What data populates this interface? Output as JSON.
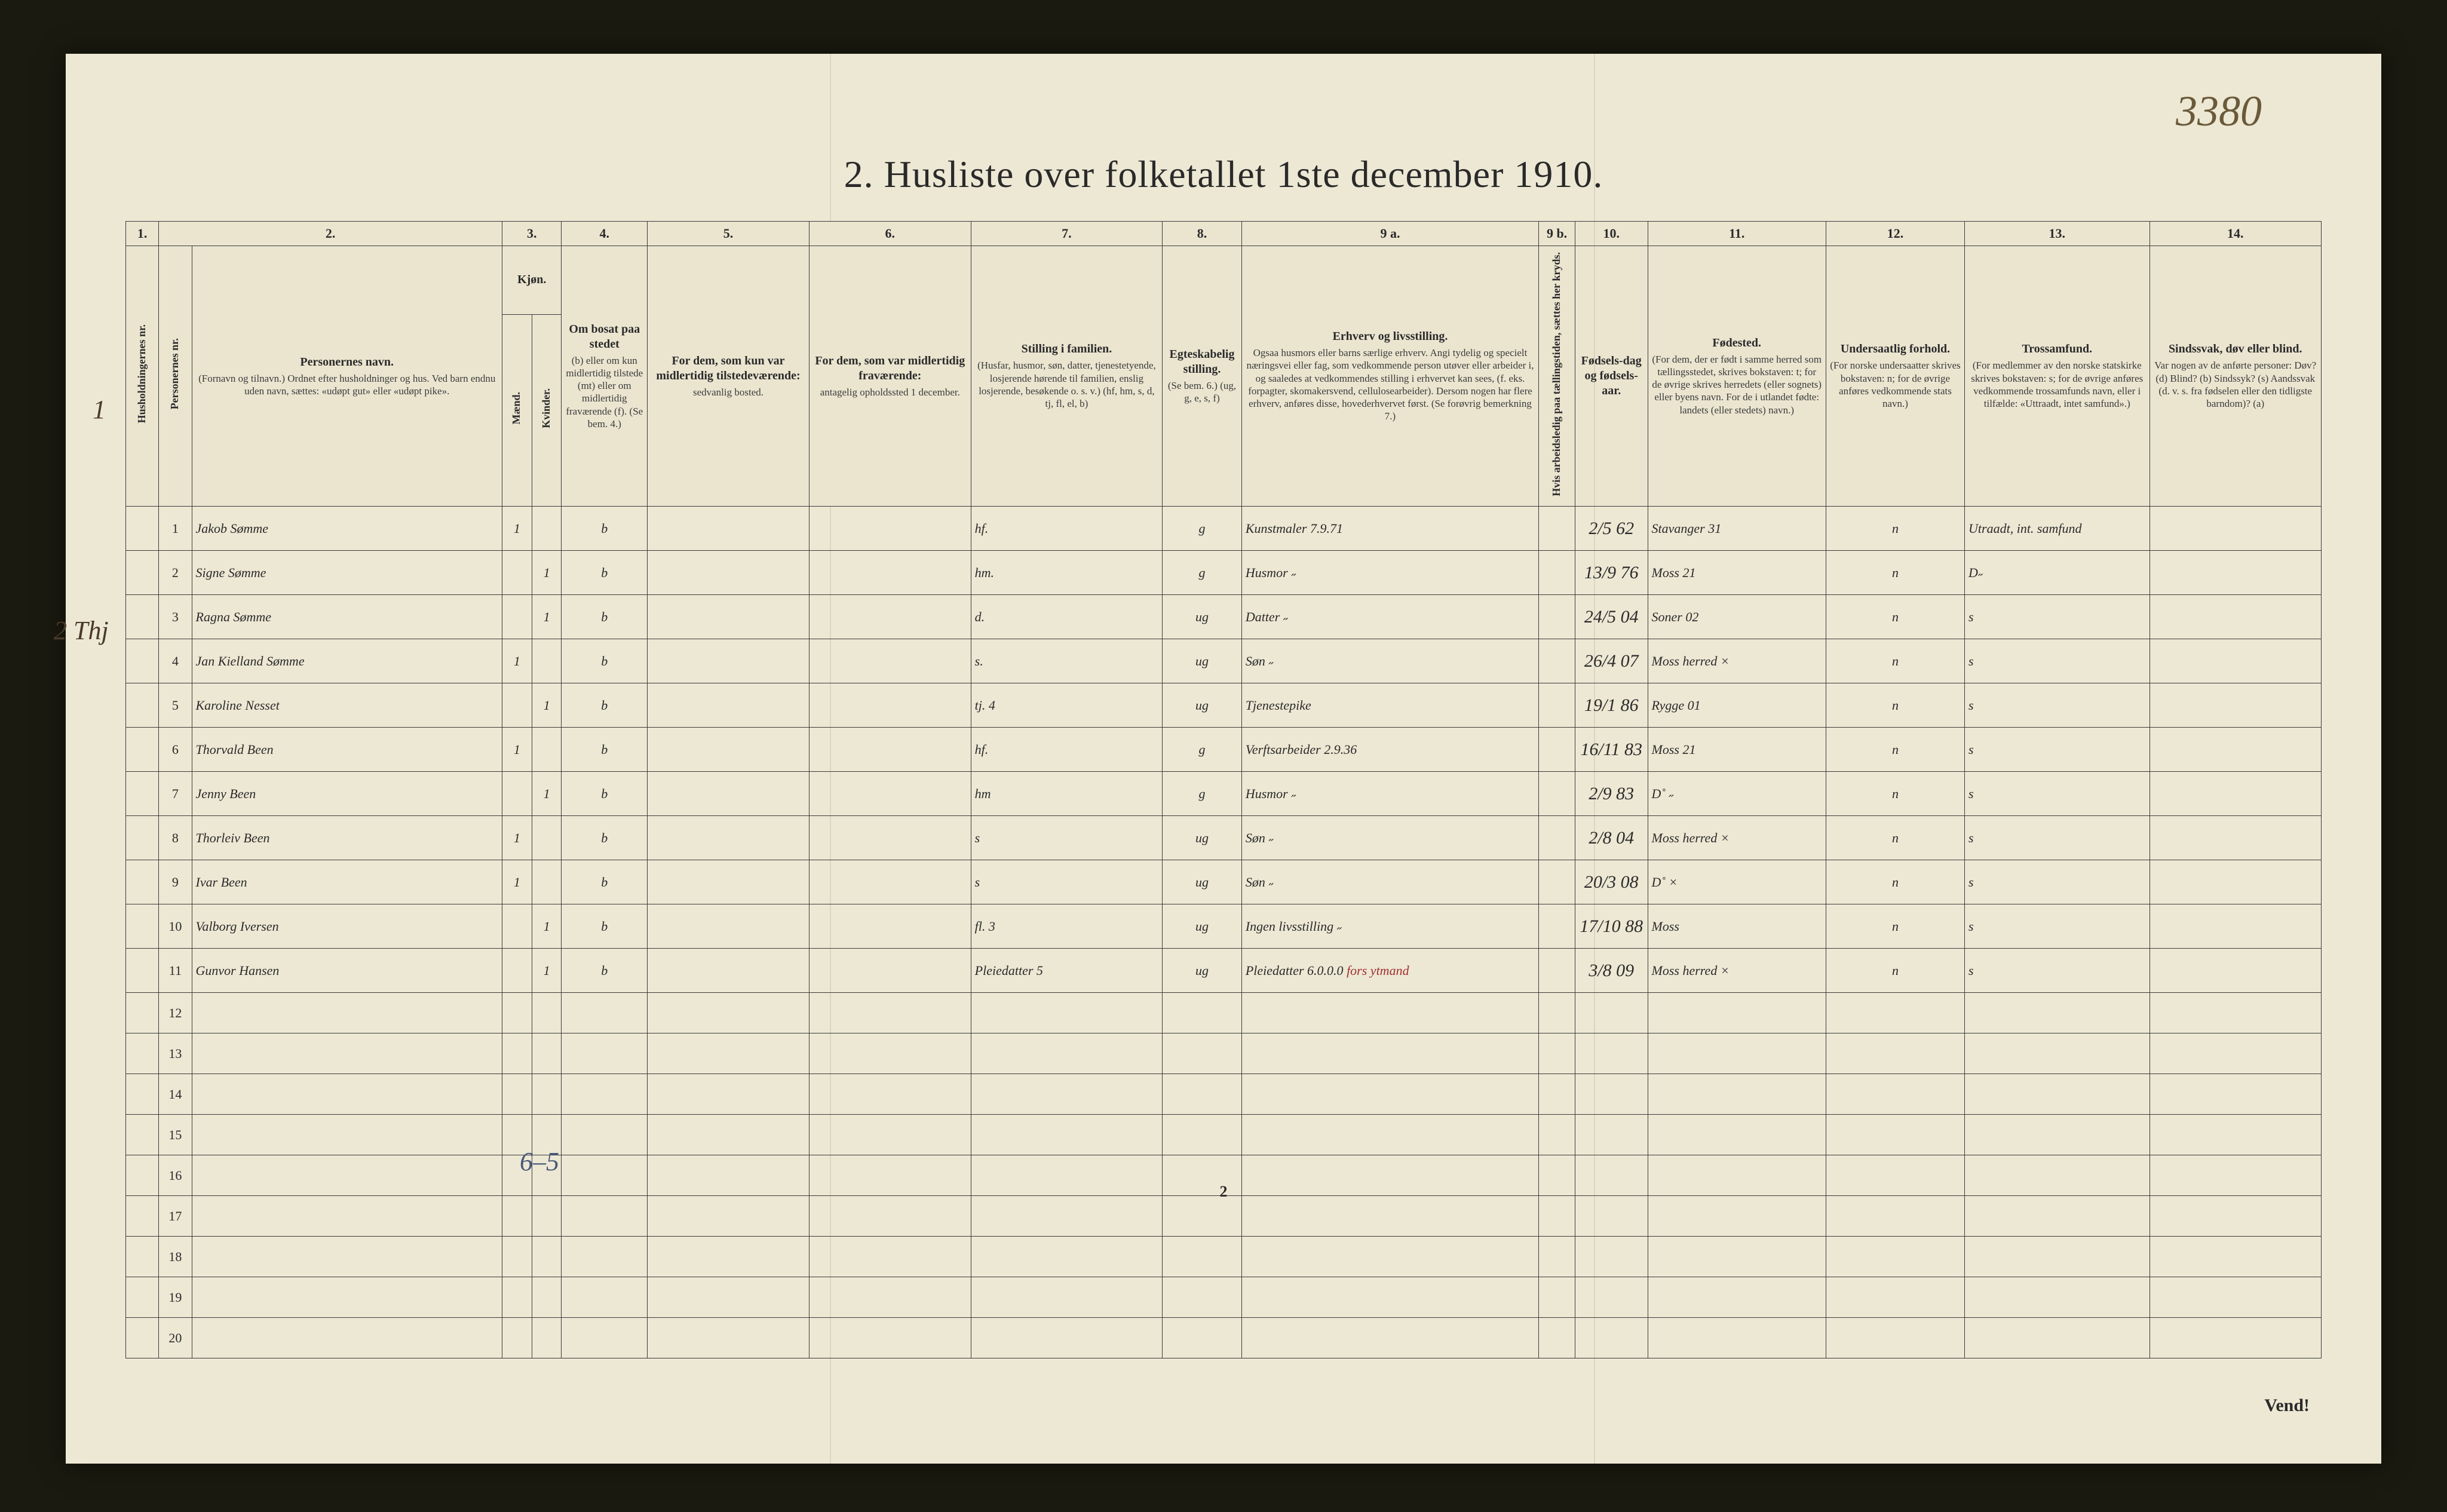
{
  "ref_number": "3380",
  "title": "2.  Husliste over folketallet 1ste december 1910.",
  "margin_notes": {
    "left1": "1",
    "left2": "2  Thj"
  },
  "bottom_note": "6–5",
  "page_number": "2",
  "vend": "Vend!",
  "header": {
    "colnums": [
      "1.",
      "2.",
      "3.",
      "4.",
      "5.",
      "6.",
      "7.",
      "8.",
      "9 a.",
      "9 b.",
      "10.",
      "11.",
      "12.",
      "13.",
      "14."
    ],
    "col1_v": "Husholdningernes nr.",
    "col2_v": "Personernes nr.",
    "col3": "Personernes navn.",
    "col3_sub": "(Fornavn og tilnavn.)\nOrdnet efter husholdninger og hus.\nVed barn endnu uden navn, sættes: «udøpt gut» eller «udøpt pike».",
    "col4": "Kjøn.",
    "col4a": "Mænd.",
    "col4b": "Kvinder.",
    "col5": "Om bosat paa stedet",
    "col5_sub": "(b) eller om kun midlertidig tilstede (mt) eller om midlertidig fraværende (f). (Se bem. 4.)",
    "col6": "For dem, som kun var midlertidig tilstedeværende:",
    "col6_sub": "sedvanlig bosted.",
    "col7": "For dem, som var midlertidig fraværende:",
    "col7_sub": "antagelig opholdssted 1 december.",
    "col8": "Stilling i familien.",
    "col8_sub": "(Husfar, husmor, søn, datter, tjenestetyende, losjerende hørende til familien, enslig losjerende, besøkende o. s. v.)\n(hf, hm, s, d, tj, fl, el, b)",
    "col9": "Egteskabelig stilling.",
    "col9_sub": "(Se bem. 6.) (ug, g, e, s, f)",
    "col10": "Erhverv og livsstilling.",
    "col10_sub": "Ogsaa husmors eller barns særlige erhverv. Angi tydelig og specielt næringsvei eller fag, som vedkommende person utøver eller arbeider i, og saaledes at vedkommendes stilling i erhvervet kan sees, (f. eks. forpagter, skomakersvend, cellulosearbeider). Dersom nogen har flere erhverv, anføres disse, hovederhvervet først. (Se forøvrig bemerkning 7.)",
    "col11_v": "Hvis arbeidsledig paa tællingstiden, sættes her kryds.",
    "col12": "Fødsels-dag og fødsels-aar.",
    "col13": "Fødested.",
    "col13_sub": "(For dem, der er født i samme herred som tællingsstedet, skrives bokstaven: t; for de øvrige skrives herredets (eller sognets) eller byens navn. For de i utlandet fødte: landets (eller stedets) navn.)",
    "col14": "Undersaatlig forhold.",
    "col14_sub": "(For norske undersaatter skrives bokstaven: n; for de øvrige anføres vedkommende stats navn.)",
    "col15": "Trossamfund.",
    "col15_sub": "(For medlemmer av den norske statskirke skrives bokstaven: s; for de øvrige anføres vedkommende trossamfunds navn, eller i tilfælde: «Uttraadt, intet samfund».)",
    "col16": "Sindssvak, døv eller blind.",
    "col16_sub": "Var nogen av de anførte personer:\nDøv? (d)\nBlind? (b)\nSindssyk? (s)\nAandssvak (d. v. s. fra fødselen eller den tidligste barndom)? (a)"
  },
  "rows": [
    {
      "n": "1",
      "name": "Jakob Sømme",
      "m": "1",
      "k": "",
      "b": "b",
      "fam": "hf.",
      "eg": "g",
      "occ": "Kunstmaler  7.9.71",
      "dob": "2/5 62",
      "birthplace": "Stavanger  31",
      "nat": "n",
      "rel": "Utraadt, int. samfund",
      "note": ""
    },
    {
      "n": "2",
      "name": "Signe Sømme",
      "m": "",
      "k": "1",
      "b": "b",
      "fam": "hm.",
      "eg": "g",
      "occ": "Husmor  ˶",
      "dob": "13/9 76",
      "birthplace": "Moss  21",
      "nat": "n",
      "rel": "D˶",
      "note": ""
    },
    {
      "n": "3",
      "name": "Ragna Sømme",
      "m": "",
      "k": "1",
      "b": "b",
      "fam": "d.",
      "eg": "ug",
      "occ": "Datter  ˶",
      "dob": "24/5 04",
      "birthplace": "Soner  02",
      "nat": "n",
      "rel": "s",
      "note": ""
    },
    {
      "n": "4",
      "name": "Jan Kielland Sømme",
      "m": "1",
      "k": "",
      "b": "b",
      "fam": "s.",
      "eg": "ug",
      "occ": "Søn  ˶",
      "dob": "26/4 07",
      "birthplace": "Moss herred  ×",
      "nat": "n",
      "rel": "s",
      "note": ""
    },
    {
      "n": "5",
      "name": "Karoline Nesset",
      "m": "",
      "k": "1",
      "b": "b",
      "fam": "tj.   4",
      "eg": "ug",
      "occ": "Tjenestepike",
      "dob": "19/1 86",
      "birthplace": "Rygge  01",
      "nat": "n",
      "rel": "s",
      "note": ""
    },
    {
      "n": "6",
      "name": "Thorvald Been",
      "m": "1",
      "k": "",
      "b": "b",
      "fam": "hf.",
      "eg": "g",
      "occ": "Verftsarbeider  2.9.36",
      "dob": "16/11 83",
      "birthplace": "Moss  21",
      "nat": "n",
      "rel": "s",
      "note": ""
    },
    {
      "n": "7",
      "name": "Jenny Been",
      "m": "",
      "k": "1",
      "b": "b",
      "fam": "hm",
      "eg": "g",
      "occ": "Husmor  ˶",
      "dob": "2/9 83",
      "birthplace": "D˚  ˶",
      "nat": "n",
      "rel": "s",
      "note": ""
    },
    {
      "n": "8",
      "name": "Thorleiv Been",
      "m": "1",
      "k": "",
      "b": "b",
      "fam": "s",
      "eg": "ug",
      "occ": "Søn  ˶",
      "dob": "2/8 04",
      "birthplace": "Moss herred  ×",
      "nat": "n",
      "rel": "s",
      "note": ""
    },
    {
      "n": "9",
      "name": "Ivar Been",
      "m": "1",
      "k": "",
      "b": "b",
      "fam": "s",
      "eg": "ug",
      "occ": "Søn  ˶",
      "dob": "20/3 08",
      "birthplace": "D˚  ×",
      "nat": "n",
      "rel": "s",
      "note": ""
    },
    {
      "n": "10",
      "name": "Valborg Iversen",
      "m": "",
      "k": "1",
      "b": "b",
      "fam": "fl.   3",
      "eg": "ug",
      "occ": "Ingen livsstilling  ˶",
      "dob": "17/10 88",
      "birthplace": "Moss",
      "nat": "n",
      "rel": "s",
      "note": ""
    },
    {
      "n": "11",
      "name": "Gunvor Hansen",
      "m": "",
      "k": "1",
      "b": "b",
      "fam": "Pleiedatter 5",
      "eg": "ug",
      "occ": "Pleiedatter  6.0.0.0",
      "dob": "3/8 09",
      "birthplace": "Moss herred  ×",
      "nat": "n",
      "rel": "s",
      "note": "",
      "red": "fors ytmand"
    }
  ],
  "empty_rows": [
    "12",
    "13",
    "14",
    "15",
    "16",
    "17",
    "18",
    "19",
    "20"
  ],
  "colors": {
    "paper": "#ede8d4",
    "ink": "#2a2a2a",
    "handwriting": "#3b3424",
    "red": "#a03030",
    "blue_pencil": "#4a5a7a",
    "border": "#3a3a3a"
  }
}
